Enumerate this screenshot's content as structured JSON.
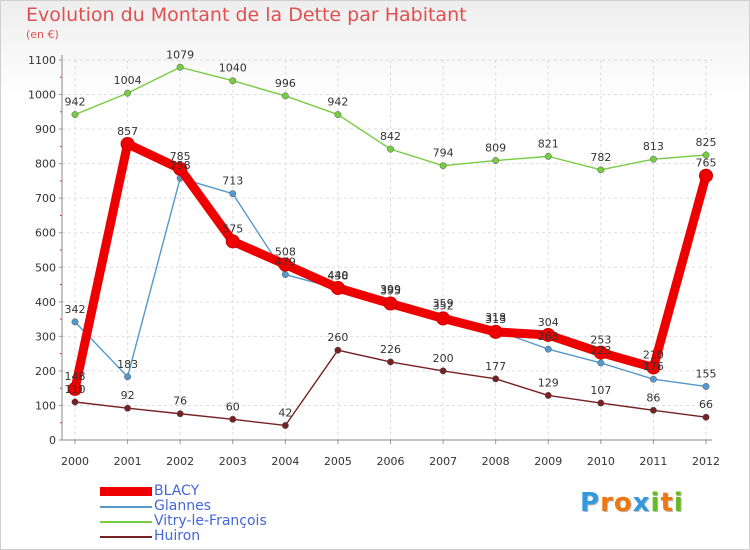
{
  "chart_data": {
    "type": "line",
    "title": "Evolution du Montant de la Dette par Habitant",
    "subtitle": "(en €)",
    "x": [
      "2000",
      "2001",
      "2002",
      "2003",
      "2004",
      "2005",
      "2006",
      "2007",
      "2008",
      "2009",
      "2010",
      "2011",
      "2012"
    ],
    "ylim": [
      0,
      1100
    ],
    "yticks": [
      "0",
      "100",
      "200",
      "300",
      "400",
      "500",
      "600",
      "700",
      "800",
      "900",
      "1000",
      "1100"
    ],
    "grid": true,
    "legend_position": "bottom-left",
    "series": [
      {
        "name": "BLACY",
        "color": "#ee0000",
        "values": [
          148,
          857,
          785,
          575,
          508,
          440,
          395,
          352,
          313,
          304,
          253,
          210,
          765
        ],
        "labels": [
          "148",
          "857",
          "785",
          "575",
          "508",
          "440",
          "395",
          "352",
          "313",
          "304",
          "253",
          "210",
          "765"
        ]
      },
      {
        "name": "Glannes",
        "color": "#5599cc",
        "values": [
          342,
          183,
          758,
          713,
          479,
          438,
          399,
          359,
          318,
          263,
          223,
          176,
          155
        ],
        "labels": [
          "342",
          "183",
          "758",
          "713",
          "479",
          "438",
          "399",
          "359",
          "318",
          "263",
          "223",
          "176",
          "155"
        ]
      },
      {
        "name": "Vitry-le-François",
        "color": "#77cc44",
        "values": [
          942,
          1004,
          1079,
          1040,
          996,
          942,
          842,
          794,
          809,
          821,
          782,
          813,
          825
        ],
        "labels": [
          "942",
          "1004",
          "1079",
          "1040",
          "996",
          "942",
          "842",
          "794",
          "809",
          "821",
          "782",
          "813",
          "825"
        ]
      },
      {
        "name": "Huiron",
        "color": "#772222",
        "values": [
          110,
          92,
          76,
          60,
          42,
          260,
          226,
          200,
          177,
          129,
          107,
          86,
          66
        ],
        "labels": [
          "110",
          "92",
          "76",
          "60",
          "42",
          "260",
          "226",
          "200",
          "177",
          "129",
          "107",
          "86",
          "66"
        ]
      }
    ]
  },
  "logo": {
    "letters": [
      "P",
      "r",
      "o",
      "x",
      "i",
      "t",
      "i"
    ],
    "colors": [
      "#3399dd",
      "#ee7711",
      "#ee7711",
      "#3399dd",
      "#66bb22",
      "#ee7711",
      "#66bb22"
    ]
  }
}
